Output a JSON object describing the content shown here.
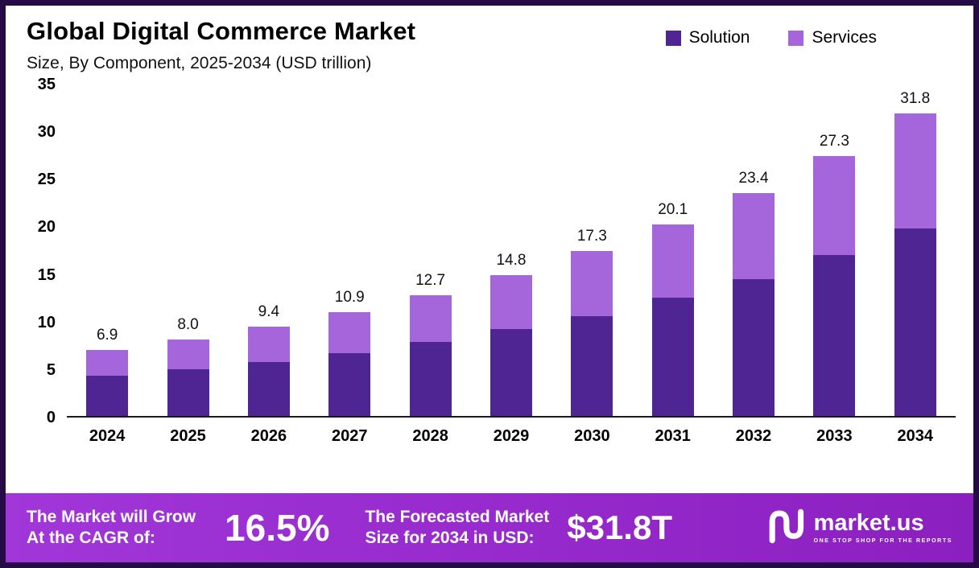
{
  "header": {
    "title": "Global Digital Commerce Market",
    "subtitle": "Size, By Component, 2025-2034 (USD trillion)"
  },
  "legend": [
    {
      "label": "Solution",
      "color": "#4E2593"
    },
    {
      "label": "Services",
      "color": "#A566DB"
    }
  ],
  "chart_data": {
    "type": "bar",
    "stacked": true,
    "title": "Global Digital Commerce Market Size, By Component, 2025-2034 (USD trillion)",
    "categories": [
      "2024",
      "2025",
      "2026",
      "2027",
      "2028",
      "2029",
      "2030",
      "2031",
      "2032",
      "2033",
      "2034"
    ],
    "series": [
      {
        "name": "Solution",
        "color": "#4E2593",
        "values": [
          4.2,
          4.9,
          5.7,
          6.6,
          7.8,
          9.1,
          10.5,
          12.4,
          14.4,
          16.9,
          19.7
        ]
      },
      {
        "name": "Services",
        "color": "#A566DB",
        "values": [
          2.7,
          3.1,
          3.7,
          4.3,
          4.9,
          5.7,
          6.8,
          7.7,
          9.0,
          10.4,
          12.1
        ]
      }
    ],
    "totals": [
      6.9,
      8.0,
      9.4,
      10.9,
      12.7,
      14.8,
      17.3,
      20.1,
      23.4,
      27.3,
      31.8
    ],
    "total_labels": [
      "6.9",
      "8.0",
      "9.4",
      "10.9",
      "12.7",
      "14.8",
      "17.3",
      "20.1",
      "23.4",
      "27.3",
      "31.8"
    ],
    "ylim": [
      0,
      35
    ],
    "yticks": [
      0,
      5,
      10,
      15,
      20,
      25,
      30,
      35
    ],
    "xlabel": "",
    "ylabel": "",
    "legend_position": "top-right",
    "grid": false
  },
  "footer": {
    "cagr_label_line1": "The Market will Grow",
    "cagr_label_line2": "At the CAGR of:",
    "cagr_value": "16.5%",
    "forecast_label_line1": "The Forecasted Market",
    "forecast_label_line2": "Size for 2034 in USD:",
    "forecast_value": "$31.8T",
    "brand_name": "market.us",
    "brand_tagline": "ONE STOP SHOP FOR THE REPORTS",
    "background_color": "#9326C6"
  }
}
